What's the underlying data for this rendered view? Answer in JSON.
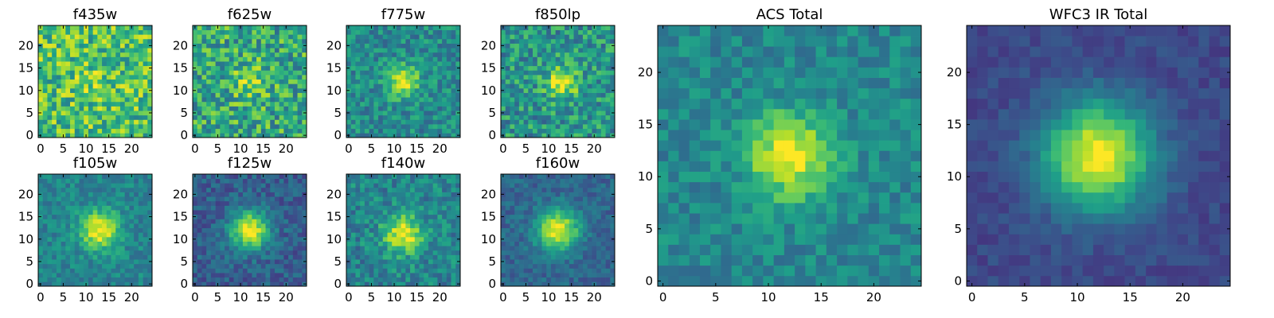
{
  "figure": {
    "background": "#ffffff"
  },
  "colormap": {
    "name": "viridis",
    "stops": [
      "#440154",
      "#482878",
      "#3e4989",
      "#31688e",
      "#26828e",
      "#1f9e89",
      "#35b779",
      "#6ece58",
      "#b5de2b",
      "#fde725"
    ]
  },
  "chart_data": [
    {
      "type": "heatmap",
      "title": "f435w",
      "grid_size": 25,
      "xlim": [
        0,
        24
      ],
      "ylim": [
        0,
        24
      ],
      "xticks": [
        0,
        5,
        10,
        15,
        20
      ],
      "yticks": [
        0,
        5,
        10,
        15,
        20
      ],
      "center": [
        12,
        12
      ],
      "peak": 0.78,
      "floor": 0.7,
      "sigma": 3.0,
      "noise": 0.26,
      "seed": 11
    },
    {
      "type": "heatmap",
      "title": "f625w",
      "grid_size": 25,
      "xlim": [
        0,
        24
      ],
      "ylim": [
        0,
        24
      ],
      "xticks": [
        0,
        5,
        10,
        15,
        20
      ],
      "yticks": [
        0,
        5,
        10,
        15,
        20
      ],
      "center": [
        12,
        12
      ],
      "peak": 0.85,
      "floor": 0.6,
      "sigma": 2.6,
      "noise": 0.26,
      "seed": 23
    },
    {
      "type": "heatmap",
      "title": "f775w",
      "grid_size": 25,
      "xlim": [
        0,
        24
      ],
      "ylim": [
        0,
        24
      ],
      "xticks": [
        0,
        5,
        10,
        15,
        20
      ],
      "yticks": [
        0,
        5,
        10,
        15,
        20
      ],
      "center": [
        12,
        12
      ],
      "peak": 0.97,
      "floor": 0.48,
      "sigma": 2.4,
      "noise": 0.17,
      "seed": 37
    },
    {
      "type": "heatmap",
      "title": "f850lp",
      "grid_size": 25,
      "xlim": [
        0,
        24
      ],
      "ylim": [
        0,
        24
      ],
      "xticks": [
        0,
        5,
        10,
        15,
        20
      ],
      "yticks": [
        0,
        5,
        10,
        15,
        20
      ],
      "center": [
        13,
        12
      ],
      "peak": 0.95,
      "floor": 0.52,
      "sigma": 2.5,
      "noise": 0.22,
      "seed": 41
    },
    {
      "type": "heatmap",
      "title": "f105w",
      "grid_size": 25,
      "xlim": [
        0,
        24
      ],
      "ylim": [
        0,
        24
      ],
      "xticks": [
        0,
        5,
        10,
        15,
        20
      ],
      "yticks": [
        0,
        5,
        10,
        15,
        20
      ],
      "center": [
        13,
        12
      ],
      "peak": 1.0,
      "floor": 0.45,
      "sigma": 3.0,
      "noise": 0.12,
      "seed": 53
    },
    {
      "type": "heatmap",
      "title": "f125w",
      "grid_size": 25,
      "xlim": [
        0,
        24
      ],
      "ylim": [
        0,
        24
      ],
      "xticks": [
        0,
        5,
        10,
        15,
        20
      ],
      "yticks": [
        0,
        5,
        10,
        15,
        20
      ],
      "center": [
        12,
        12
      ],
      "peak": 1.0,
      "floor": 0.3,
      "sigma": 3.0,
      "noise": 0.12,
      "seed": 67
    },
    {
      "type": "heatmap",
      "title": "f140w",
      "grid_size": 25,
      "xlim": [
        0,
        24
      ],
      "ylim": [
        0,
        24
      ],
      "xticks": [
        0,
        5,
        10,
        15,
        20
      ],
      "yticks": [
        0,
        5,
        10,
        15,
        20
      ],
      "center": [
        12,
        11
      ],
      "peak": 0.98,
      "floor": 0.45,
      "sigma": 3.0,
      "noise": 0.16,
      "seed": 79
    },
    {
      "type": "heatmap",
      "title": "f160w",
      "grid_size": 25,
      "xlim": [
        0,
        24
      ],
      "ylim": [
        0,
        24
      ],
      "xticks": [
        0,
        5,
        10,
        15,
        20
      ],
      "yticks": [
        0,
        5,
        10,
        15,
        20
      ],
      "center": [
        12,
        12
      ],
      "peak": 1.0,
      "floor": 0.33,
      "sigma": 3.2,
      "noise": 0.1,
      "seed": 83
    },
    {
      "type": "heatmap",
      "title": "ACS Total",
      "grid_size": 25,
      "xlim": [
        0,
        24
      ],
      "ylim": [
        0,
        24
      ],
      "xticks": [
        0,
        5,
        10,
        15,
        20
      ],
      "yticks": [
        0,
        5,
        10,
        15,
        20
      ],
      "center": [
        12,
        12
      ],
      "peak": 1.0,
      "floor": 0.46,
      "sigma": 2.8,
      "noise": 0.12,
      "seed": 97
    },
    {
      "type": "heatmap",
      "title": "WFC3 IR Total",
      "grid_size": 25,
      "xlim": [
        0,
        24
      ],
      "ylim": [
        0,
        24
      ],
      "xticks": [
        0,
        5,
        10,
        15,
        20
      ],
      "yticks": [
        0,
        5,
        10,
        15,
        20
      ],
      "center": [
        12,
        12
      ],
      "peak": 1.0,
      "floor": 0.22,
      "sigma": 3.6,
      "noise": 0.06,
      "seed": 101
    }
  ]
}
